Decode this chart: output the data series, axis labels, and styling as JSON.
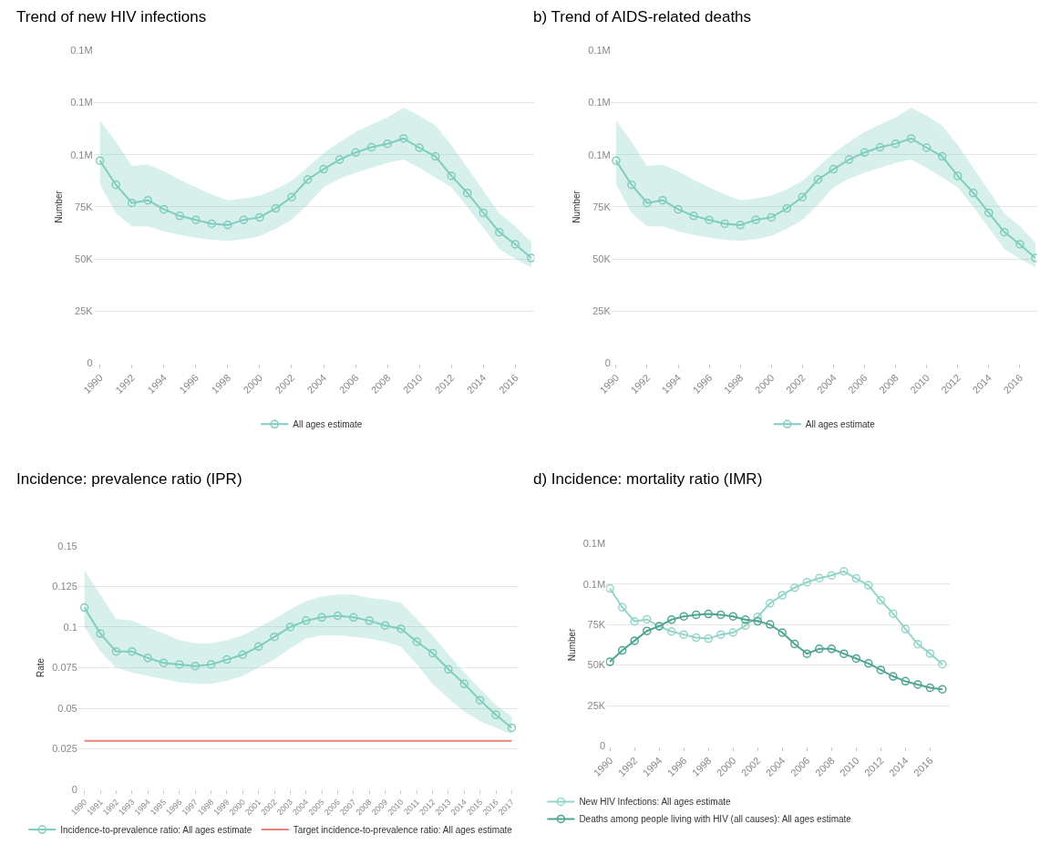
{
  "chart_data": [
    {
      "type": "line",
      "title": "Trend of new HIV infections",
      "ylabel": "Number",
      "x": [
        1990,
        1991,
        1992,
        1993,
        1994,
        1995,
        1996,
        1997,
        1998,
        1999,
        2000,
        2001,
        2002,
        2003,
        2004,
        2005,
        2006,
        2007,
        2008,
        2009,
        2010,
        2011,
        2012,
        2013,
        2014,
        2015,
        2016,
        2017
      ],
      "series": [
        {
          "name": "All ages estimate",
          "color": "#7fcdbe",
          "values": [
            97200,
            85600,
            76900,
            78200,
            73800,
            70700,
            68800,
            66900,
            66300,
            68800,
            70000,
            74300,
            79700,
            88100,
            93100,
            97700,
            101100,
            103600,
            105300,
            107800,
            103400,
            99200,
            89900,
            81700,
            72200,
            62900,
            57100,
            50500
          ],
          "upper": [
            116400,
            106200,
            94500,
            95300,
            92200,
            88000,
            84400,
            81000,
            78200,
            79000,
            80500,
            83500,
            87500,
            94000,
            100800,
            106000,
            110900,
            114500,
            117900,
            122600,
            118700,
            114000,
            104700,
            93800,
            82800,
            71900,
            65700,
            58000
          ],
          "lower": [
            86000,
            71900,
            65700,
            65700,
            63300,
            61500,
            60200,
            59300,
            58700,
            59500,
            61000,
            64500,
            68800,
            76000,
            84400,
            88500,
            91400,
            93800,
            96100,
            97700,
            93800,
            89100,
            84400,
            75000,
            64900,
            54800,
            50100,
            46000
          ]
        }
      ],
      "xlim": [
        1989.6,
        2017.2
      ],
      "xticks": [
        1990,
        1992,
        1994,
        1996,
        1998,
        2000,
        2002,
        2004,
        2006,
        2008,
        2010,
        2012,
        2014,
        2016
      ],
      "ylim": [
        0,
        150000
      ],
      "yticks": [
        {
          "value": 0,
          "label": "0"
        },
        {
          "value": 25000,
          "label": "25K"
        },
        {
          "value": 50000,
          "label": "50K"
        },
        {
          "value": 75000,
          "label": "75K"
        },
        {
          "value": 100000,
          "label": "0.1M"
        },
        {
          "value": 125000,
          "label": "0.1M"
        },
        {
          "value": 150000,
          "label": "0.1M"
        }
      ],
      "grid": "y",
      "legend": "bottom",
      "marker": "circle"
    },
    {
      "type": "line",
      "title": "b) Trend of AIDS-related deaths",
      "ylabel": "Number",
      "x": [
        1990,
        1991,
        1992,
        1993,
        1994,
        1995,
        1996,
        1997,
        1998,
        1999,
        2000,
        2001,
        2002,
        2003,
        2004,
        2005,
        2006,
        2007,
        2008,
        2009,
        2010,
        2011,
        2012,
        2013,
        2014,
        2015,
        2016,
        2017
      ],
      "series": [
        {
          "name": "All ages estimate",
          "color": "#7fcdbe",
          "values": [
            97200,
            85600,
            76900,
            78200,
            73800,
            70700,
            68800,
            66900,
            66300,
            68800,
            70000,
            74300,
            79700,
            88100,
            93100,
            97700,
            101100,
            103600,
            105300,
            107800,
            103400,
            99200,
            89900,
            81700,
            72200,
            62900,
            57100,
            50500
          ],
          "upper": [
            116400,
            106200,
            94500,
            95300,
            92200,
            88000,
            84400,
            81000,
            78200,
            79000,
            80500,
            83500,
            87500,
            94000,
            100800,
            106000,
            110900,
            114500,
            117900,
            122600,
            118700,
            114000,
            104700,
            93800,
            82800,
            71900,
            65700,
            58000
          ],
          "lower": [
            86000,
            71900,
            65700,
            65700,
            63300,
            61500,
            60200,
            59300,
            58700,
            59500,
            61000,
            64500,
            68800,
            76000,
            84400,
            88500,
            91400,
            93800,
            96100,
            97700,
            93800,
            89100,
            84400,
            75000,
            64900,
            54800,
            50100,
            46000
          ]
        }
      ],
      "xlim": [
        1989.7,
        2017.1
      ],
      "xticks": [
        1990,
        1992,
        1994,
        1996,
        1998,
        2000,
        2002,
        2004,
        2006,
        2008,
        2010,
        2012,
        2014,
        2016
      ],
      "ylim": [
        0,
        150000
      ],
      "yticks": [
        {
          "value": 0,
          "label": "0"
        },
        {
          "value": 25000,
          "label": "25K"
        },
        {
          "value": 50000,
          "label": "50K"
        },
        {
          "value": 75000,
          "label": "75K"
        },
        {
          "value": 100000,
          "label": "0.1M"
        },
        {
          "value": 125000,
          "label": "0.1M"
        },
        {
          "value": 150000,
          "label": "0.1M"
        }
      ],
      "grid": "y",
      "legend": "bottom",
      "marker": "circle"
    },
    {
      "type": "line",
      "title": "Incidence: prevalence ratio (IPR)",
      "ylabel": "Rate",
      "x": [
        1990,
        1991,
        1992,
        1993,
        1994,
        1995,
        1996,
        1997,
        1998,
        1999,
        2000,
        2001,
        2002,
        2003,
        2004,
        2005,
        2006,
        2007,
        2008,
        2009,
        2010,
        2011,
        2012,
        2013,
        2014,
        2015,
        2016,
        2017
      ],
      "series": [
        {
          "name": "Incidence-to-prevalence ratio: All ages estimate",
          "color": "#7fcdbe",
          "values": [
            0.112,
            0.096,
            0.085,
            0.085,
            0.081,
            0.078,
            0.077,
            0.076,
            0.077,
            0.08,
            0.083,
            0.088,
            0.094,
            0.1,
            0.104,
            0.106,
            0.107,
            0.106,
            0.104,
            0.101,
            0.099,
            0.091,
            0.084,
            0.074,
            0.065,
            0.055,
            0.046,
            0.038
          ],
          "upper": [
            0.135,
            0.12,
            0.105,
            0.104,
            0.1,
            0.096,
            0.092,
            0.09,
            0.09,
            0.092,
            0.095,
            0.1,
            0.105,
            0.111,
            0.116,
            0.119,
            0.12,
            0.12,
            0.118,
            0.117,
            0.115,
            0.105,
            0.095,
            0.083,
            0.072,
            0.062,
            0.052,
            0.045
          ],
          "lower": [
            0.1,
            0.085,
            0.075,
            0.072,
            0.07,
            0.068,
            0.066,
            0.065,
            0.065,
            0.067,
            0.07,
            0.075,
            0.08,
            0.087,
            0.093,
            0.095,
            0.095,
            0.094,
            0.093,
            0.091,
            0.088,
            0.077,
            0.065,
            0.056,
            0.048,
            0.042,
            0.038,
            0.034
          ]
        },
        {
          "name": "Target incidence-to-prevalence ratio: All ages estimate",
          "color": "#e8837a",
          "marker": "none",
          "values": [
            0.03,
            0.03,
            0.03,
            0.03,
            0.03,
            0.03,
            0.03,
            0.03,
            0.03,
            0.03,
            0.03,
            0.03,
            0.03,
            0.03,
            0.03,
            0.03,
            0.03,
            0.03,
            0.03,
            0.03,
            0.03,
            0.03,
            0.03,
            0.03,
            0.03,
            0.03,
            0.03,
            0.03
          ]
        }
      ],
      "xlim": [
        1989.6,
        2017.4
      ],
      "xticks": [
        1990,
        1991,
        1992,
        1993,
        1994,
        1995,
        1996,
        1997,
        1998,
        1999,
        2000,
        2001,
        2002,
        2003,
        2004,
        2005,
        2006,
        2007,
        2008,
        2009,
        2010,
        2011,
        2012,
        2013,
        2014,
        2015,
        2016,
        2017
      ],
      "ylim": [
        0,
        0.15
      ],
      "yticks": [
        0,
        0.025,
        0.05,
        0.075,
        0.1,
        0.125,
        0.15
      ],
      "grid": "y",
      "legend": "bottom",
      "marker": "circle"
    },
    {
      "type": "line",
      "title": "d) Incidence: mortality ratio (IMR)",
      "ylabel": "Number",
      "x": [
        1990,
        1991,
        1992,
        1993,
        1994,
        1995,
        1996,
        1997,
        1998,
        1999,
        2000,
        2001,
        2002,
        2003,
        2004,
        2005,
        2006,
        2007,
        2008,
        2009,
        2010,
        2011,
        2012,
        2013,
        2014,
        2015,
        2016,
        2017
      ],
      "series": [
        {
          "name": "New HIV Infections: All ages estimate",
          "color": "#93d5c8",
          "values": [
            97200,
            85600,
            76900,
            78200,
            73800,
            70700,
            68800,
            66900,
            66300,
            68800,
            70000,
            74300,
            79700,
            88100,
            93100,
            97700,
            101100,
            103600,
            105300,
            107800,
            103400,
            99200,
            89900,
            81700,
            72200,
            62900,
            57100,
            50500
          ]
        },
        {
          "name": "Deaths among people living with HIV (all causes): All ages estimate",
          "color": "#4fa592",
          "values": [
            52000,
            59000,
            65000,
            71000,
            74000,
            78000,
            80000,
            81000,
            81500,
            81000,
            80000,
            78000,
            77000,
            75000,
            70000,
            63000,
            57000,
            60000,
            60000,
            57000,
            54000,
            51000,
            47000,
            43000,
            40000,
            38000,
            36000,
            35000
          ]
        }
      ],
      "xlim": [
        1989.7,
        2017.6
      ],
      "xticks": [
        1990,
        1992,
        1994,
        1996,
        1998,
        2000,
        2002,
        2004,
        2006,
        2008,
        2010,
        2012,
        2014,
        2016
      ],
      "ylim": [
        0,
        125000
      ],
      "yticks": [
        {
          "value": 0,
          "label": "0"
        },
        {
          "value": 25000,
          "label": "25K"
        },
        {
          "value": 50000,
          "label": "50K"
        },
        {
          "value": 75000,
          "label": "75K"
        },
        {
          "value": 100000,
          "label": "0.1M"
        },
        {
          "value": 125000,
          "label": "0.1M"
        }
      ],
      "grid": "y",
      "legend": "bottom",
      "marker": "circle"
    }
  ]
}
